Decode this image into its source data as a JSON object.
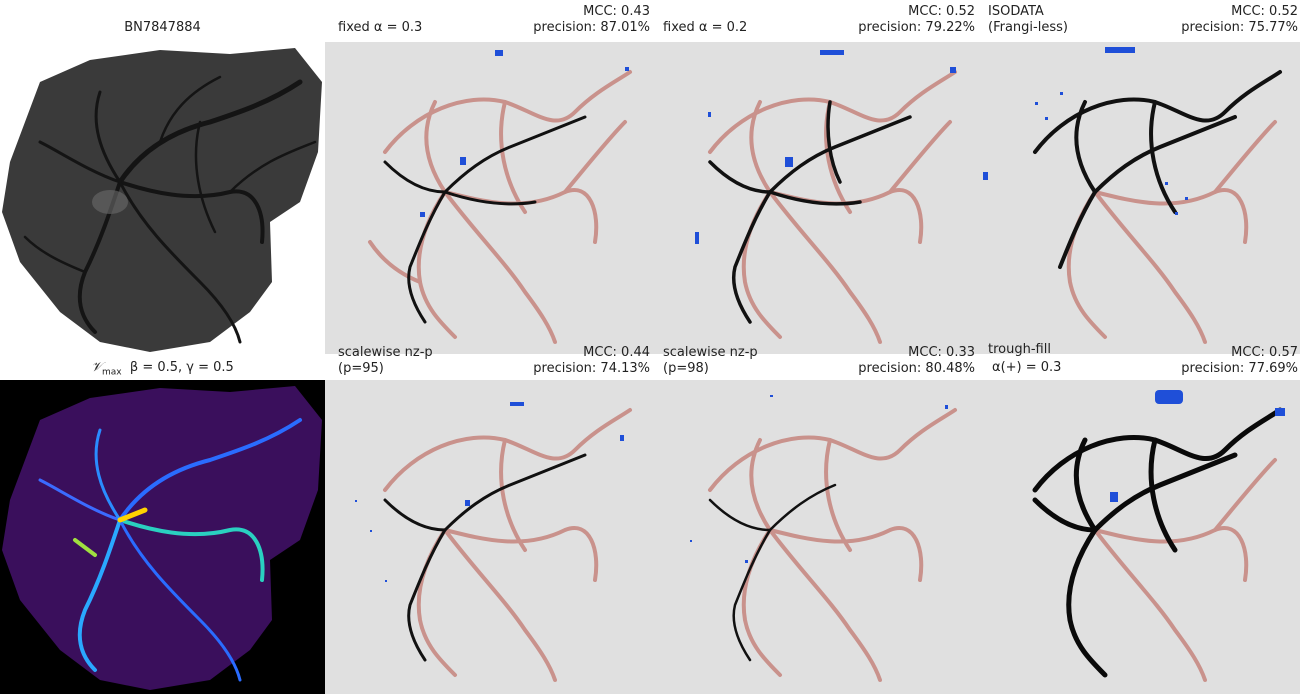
{
  "figure": {
    "top_left_title": "BN7847884",
    "bottom_left_title_symbol": "𝒱",
    "bottom_left_title_sub": "max",
    "bottom_left_title_params": "β = 0.5, γ = 0.5",
    "panels": [
      {
        "id": "fixed-03",
        "label_line1": "fixed α = 0.3",
        "label_line2": "",
        "mcc": "MCC: 0.43",
        "precision": "precision: 87.01%"
      },
      {
        "id": "fixed-02",
        "label_line1": "fixed α = 0.2",
        "label_line2": "",
        "mcc": "MCC: 0.52",
        "precision": "precision: 79.22%"
      },
      {
        "id": "isodata",
        "label_line1": "ISODATA",
        "label_line2": "(Frangi-less)",
        "mcc": "MCC: 0.52",
        "precision": "precision: 75.77%"
      },
      {
        "id": "nzp-95",
        "label_line1": "scalewise nz-p",
        "label_line2": "(p=95)",
        "mcc": "MCC: 0.44",
        "precision": "precision: 74.13%"
      },
      {
        "id": "nzp-98",
        "label_line1": "scalewise nz-p",
        "label_line2": "(p=98)",
        "mcc": "MCC: 0.33",
        "precision": "precision: 80.48%"
      },
      {
        "id": "trough-fill",
        "label_line1": "trough-fill",
        "label_line2": "α(+) = 0.3",
        "mcc": "MCC: 0.57",
        "precision": "precision: 77.69%"
      }
    ],
    "colors": {
      "panel_background": "#e0e0e0",
      "ground_truth_vessel": "#c9928c",
      "true_positive": "#000000",
      "false_positive": "#1f4fd8"
    }
  }
}
